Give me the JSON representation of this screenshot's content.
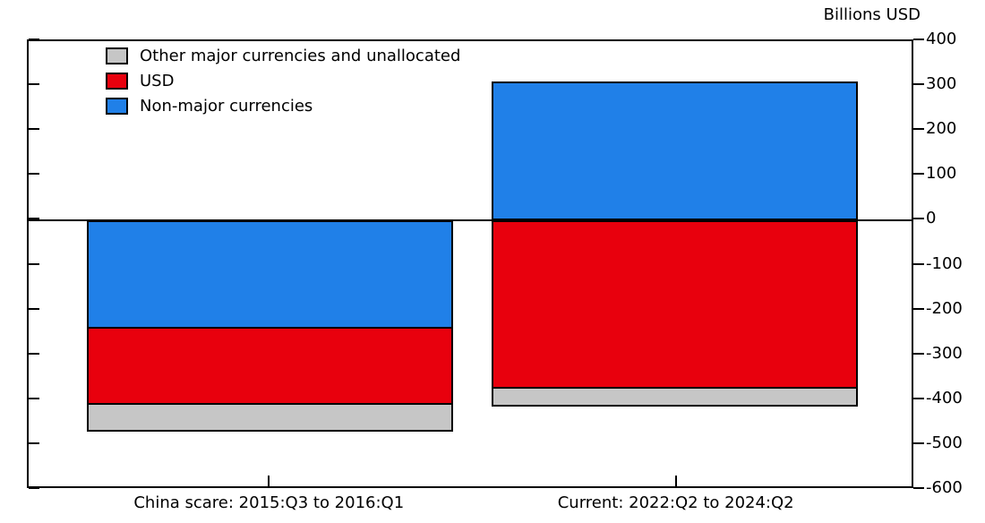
{
  "chart": {
    "unit_label": "Billions USD",
    "legend": [
      {
        "label": "Other major currencies and unallocated",
        "color": "#c6c6c6"
      },
      {
        "label": "USD",
        "color": "#e8000d"
      },
      {
        "label": "Non-major currencies",
        "color": "#2080e8"
      }
    ]
  },
  "chart_data": {
    "type": "bar",
    "stacked": true,
    "title": "",
    "ylabel": "Billions USD",
    "xlabel": "",
    "ylim": [
      -600,
      400
    ],
    "y_tick_step": 100,
    "y_tick_labels": [
      "400",
      "300",
      "200",
      "100",
      "0",
      "-100",
      "-200",
      "-300",
      "-400",
      "-500",
      "-600"
    ],
    "grid": false,
    "legend_position": "top-left",
    "categories": [
      "China scare: 2015:Q3 to 2016:Q1",
      "Current: 2022:Q2 to 2024:Q2"
    ],
    "series": [
      {
        "name": "Non-major currencies",
        "color": "#2080e8",
        "values": [
          -240,
          310
        ]
      },
      {
        "name": "USD",
        "color": "#e8000d",
        "values": [
          -170,
          -375
        ]
      },
      {
        "name": "Other major currencies and unallocated",
        "color": "#c6c6c6",
        "values": [
          -60,
          -40
        ]
      }
    ]
  }
}
